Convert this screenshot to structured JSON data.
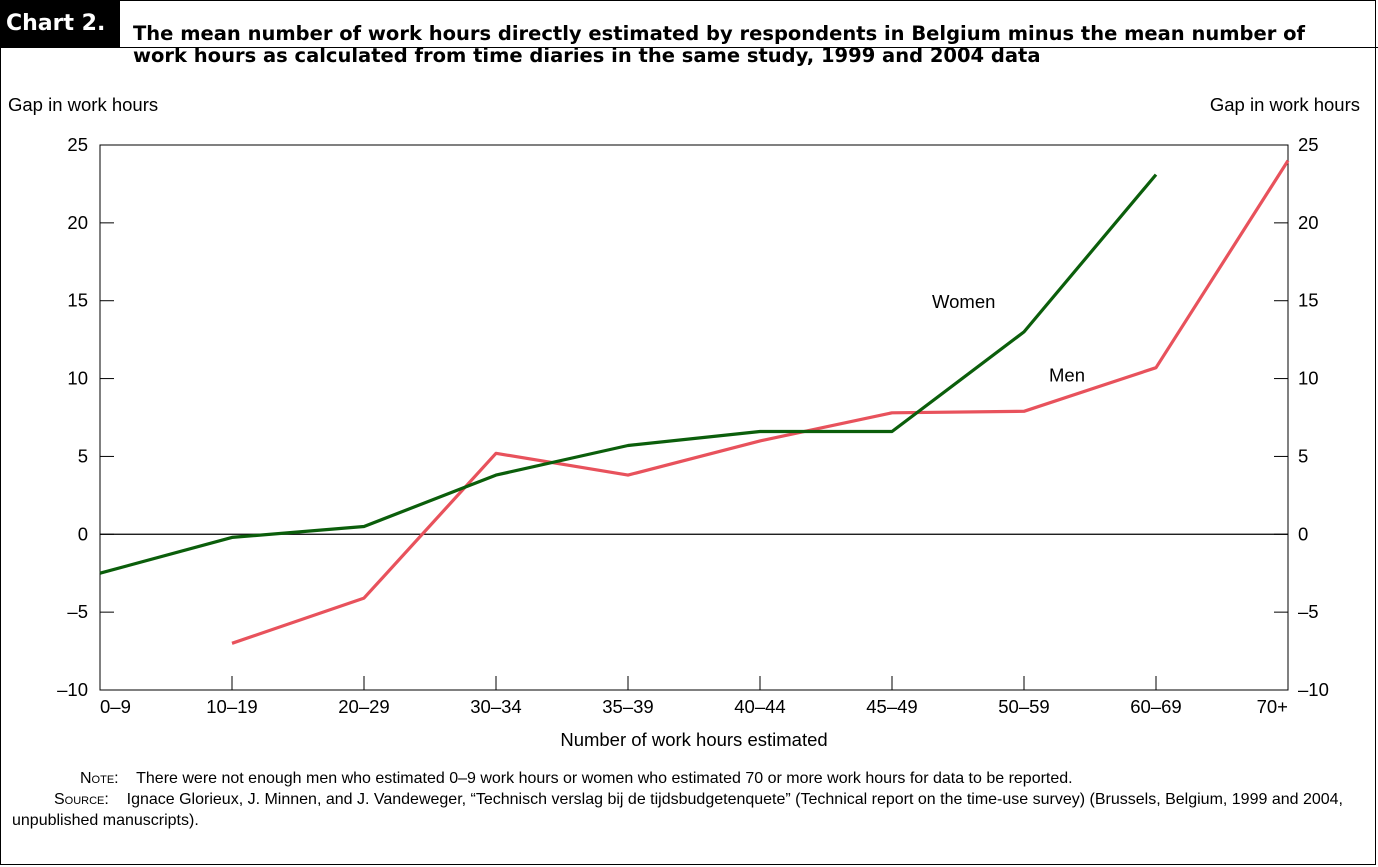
{
  "header": {
    "chart_label": "Chart 2.",
    "title": "The mean number of work hours directly estimated by respondents in Belgium minus the mean number of work hours as calculated from time diaries in the same study, 1999 and 2004 data"
  },
  "notes": {
    "note_label": "Note:",
    "note_text": "There were not enough men who estimated 0–9 work hours or women who estimated 70 or more work hours for data to be reported.",
    "source_label": "Source:",
    "source_text": "Ignace Glorieux, J. Minnen, and J. Vandeweger, “Technisch verslag bij de tijdsbudgetenquete” (Technical report on the time-use survey) (Brussels, Belgium, 1999 and 2004, unpublished manuscripts)."
  },
  "chart_data": {
    "type": "line",
    "title": "The mean number of work hours directly estimated by respondents in Belgium minus the mean number of work hours as calculated from time diaries in the same study, 1999 and 2004 data",
    "xlabel": "Number of work hours estimated",
    "ylabel_left": "Gap in work hours",
    "ylabel_right": "Gap in work hours",
    "categories": [
      "0–9",
      "10–19",
      "20–29",
      "30–34",
      "35–39",
      "40–44",
      "45–49",
      "50–59",
      "60–69",
      "70+"
    ],
    "ylim": [
      -10,
      25
    ],
    "yticks": [
      25,
      20,
      15,
      10,
      5,
      0,
      -5,
      -10
    ],
    "ytick_labels": [
      "25",
      "20",
      "15",
      "10",
      "5",
      "0",
      "–5",
      "–10"
    ],
    "grid": false,
    "zero_line": true,
    "series": [
      {
        "name": "Women",
        "color": "#0b5e0b",
        "values": [
          -2.5,
          -0.2,
          0.5,
          3.8,
          5.7,
          6.6,
          6.6,
          13.0,
          23.1,
          null
        ]
      },
      {
        "name": "Men",
        "color": "#e8525c",
        "values": [
          null,
          -7.0,
          -4.1,
          5.2,
          3.8,
          6.0,
          7.8,
          7.9,
          10.7,
          24.0
        ]
      }
    ],
    "series_labels_shown": [
      "Women",
      "Men"
    ]
  }
}
